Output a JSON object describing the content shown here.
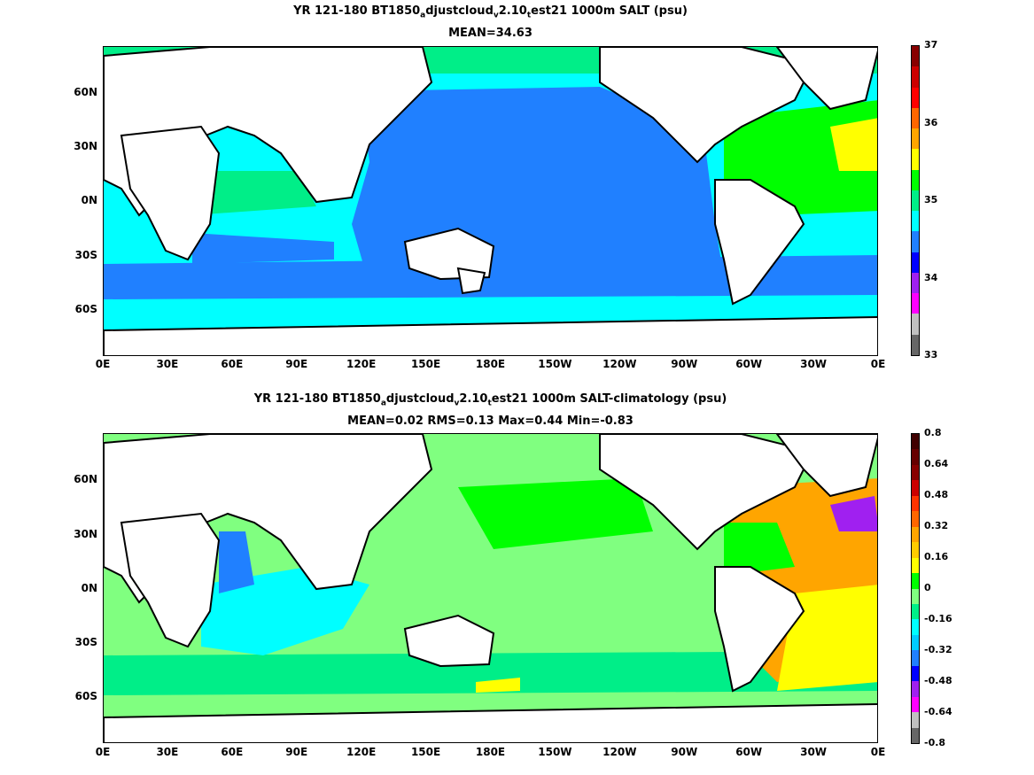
{
  "figure": {
    "panels": [
      {
        "title_line1_parts": [
          "YR 121-180 BT1850",
          "a",
          "djustcloud",
          "v",
          "2.10",
          "t",
          "est21 1000m SALT (psu)"
        ],
        "title_line2": "MEAN=34.63",
        "colorbar_ticks": [
          "37",
          "36",
          "35",
          "34",
          "33"
        ],
        "colorbar_colors": [
          "#666666",
          "#c0c0c0",
          "#ff00ff",
          "#a020f0",
          "#0000ff",
          "#2080ff",
          "#00ffff",
          "#00ee88",
          "#00ff00",
          "#ffff00",
          "#ffa500",
          "#ff6600",
          "#ff0000",
          "#cc0000",
          "#880000"
        ]
      },
      {
        "title_line1_parts": [
          "YR 121-180 BT1850",
          "a",
          "djustcloud",
          "v",
          "2.10",
          "t",
          "est21 1000m SALT-climatology (psu)"
        ],
        "title_line2": "MEAN=0.02   RMS=0.13   Max=0.44   Min=-0.83",
        "colorbar_ticks": [
          "0.8",
          "0.64",
          "0.48",
          "0.32",
          "0.16",
          "0",
          "-0.16",
          "-0.32",
          "-0.48",
          "-0.64",
          "-0.8"
        ],
        "colorbar_colors": [
          "#666666",
          "#c0c0c0",
          "#ff00ff",
          "#a020f0",
          "#0000ff",
          "#2080ff",
          "#00ccff",
          "#00ffff",
          "#00ee88",
          "#80ff80",
          "#00ff00",
          "#ffff00",
          "#ffcc00",
          "#ffa500",
          "#ff6600",
          "#ff3300",
          "#cc0000",
          "#880000",
          "#660000",
          "#400000"
        ]
      }
    ],
    "y_tick_labels": [
      "60N",
      "30N",
      "0N",
      "30S",
      "60S"
    ],
    "x_tick_labels": [
      "0E",
      "30E",
      "60E",
      "90E",
      "120E",
      "150E",
      "180E",
      "150W",
      "120W",
      "90W",
      "60W",
      "30W",
      "0E"
    ]
  },
  "chart_data": [
    {
      "type": "heatmap",
      "title": "YR 121-180 BT1850adjustcloudv2.10test21 1000m SALT (psu)",
      "subtitle": "MEAN=34.63",
      "x_tick_labels": [
        "0E",
        "30E",
        "60E",
        "90E",
        "120E",
        "150E",
        "180E",
        "150W",
        "120W",
        "90W",
        "60W",
        "30W",
        "0E"
      ],
      "y_tick_labels": [
        "60N",
        "30N",
        "0N",
        "30S",
        "60S"
      ],
      "colorbar_range": [
        33,
        37
      ],
      "colorbar_ticks": [
        37,
        36,
        35,
        34,
        33
      ],
      "mean": 34.63
    },
    {
      "type": "heatmap",
      "title": "YR 121-180 BT1850adjustcloudv2.10test21 1000m SALT-climatology (psu)",
      "subtitle": "MEAN=0.02   RMS=0.13   Max=0.44   Min=-0.83",
      "x_tick_labels": [
        "0E",
        "30E",
        "60E",
        "90E",
        "120E",
        "150E",
        "180E",
        "150W",
        "120W",
        "90W",
        "60W",
        "30W",
        "0E"
      ],
      "y_tick_labels": [
        "60N",
        "30N",
        "0N",
        "30S",
        "60S"
      ],
      "colorbar_range": [
        -0.8,
        0.8
      ],
      "colorbar_ticks": [
        0.8,
        0.64,
        0.48,
        0.32,
        0.16,
        0,
        -0.16,
        -0.32,
        -0.48,
        -0.64,
        -0.8
      ],
      "mean": 0.02,
      "rms": 0.13,
      "max": 0.44,
      "min": -0.83
    }
  ]
}
